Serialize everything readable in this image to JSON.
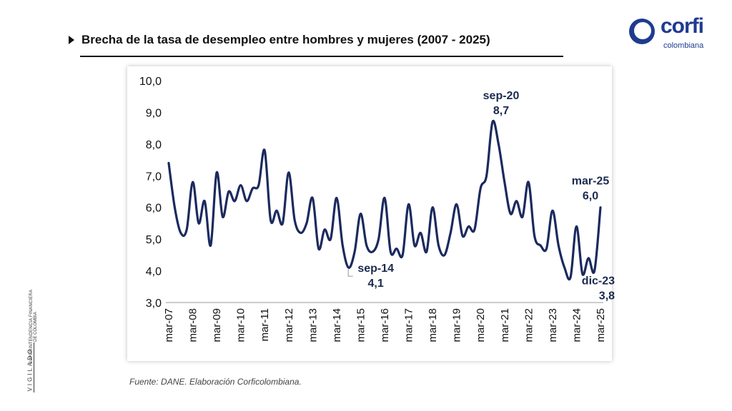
{
  "header": {
    "title": "Brecha de la tasa de desempleo entre hombres y mujeres (2007 - 2025)"
  },
  "logo": {
    "word": "corfi",
    "sub": "colombiana"
  },
  "seal": {
    "line1": "SUPERINTENDENCIA FINANCIERA",
    "line2": "DE COLOMBIA",
    "vigilado": "VIGILADO"
  },
  "source": "Fuente: DANE. Elaboración Corficolombiana.",
  "colors": {
    "line": "#1b2a5e",
    "text": "#1b2a4e",
    "axis": "#111111"
  },
  "chart_data": {
    "type": "line",
    "title": "Brecha de la tasa de desempleo entre hombres y mujeres (2007 - 2025)",
    "xlabel": "",
    "ylabel": "",
    "ylim": [
      3.0,
      10.0
    ],
    "yticks": [
      "10,0",
      "9,0",
      "8,0",
      "7,0",
      "6,0",
      "5,0",
      "4,0",
      "3,0"
    ],
    "xticks": [
      "mar-07",
      "mar-08",
      "mar-09",
      "mar-10",
      "mar-11",
      "mar-12",
      "mar-13",
      "mar-14",
      "mar-15",
      "mar-16",
      "mar-17",
      "mar-18",
      "mar-19",
      "mar-20",
      "mar-21",
      "mar-22",
      "mar-23",
      "mar-24",
      "mar-25"
    ],
    "grid": false,
    "series": [
      {
        "values": [
          7.4,
          6.0,
          5.2,
          5.3,
          6.8,
          5.5,
          6.2,
          4.8,
          7.1,
          5.7,
          6.5,
          6.2,
          6.7,
          6.2,
          6.6,
          6.7,
          7.8,
          5.6,
          5.9,
          5.5,
          7.1,
          5.6,
          5.2,
          5.5,
          6.3,
          4.7,
          5.3,
          5.0,
          6.3,
          4.8,
          4.1,
          4.6,
          5.8,
          4.8,
          4.6,
          5.0,
          6.3,
          4.6,
          4.7,
          4.5,
          6.1,
          4.8,
          5.2,
          4.6,
          6.0,
          4.8,
          4.5,
          5.2,
          6.1,
          5.1,
          5.4,
          5.3,
          6.6,
          7.0,
          8.7,
          8.0,
          6.8,
          5.8,
          6.2,
          5.7,
          6.8,
          5.1,
          4.8,
          4.7,
          5.9,
          4.8,
          4.1,
          3.8,
          5.4,
          3.9,
          4.4,
          4.0,
          6.0
        ]
      }
    ],
    "annotations": [
      {
        "label": "sep-14",
        "value": "4,1"
      },
      {
        "label": "sep-20",
        "value": "8,7"
      },
      {
        "label": "mar-25",
        "value": "6,0"
      },
      {
        "label": "dic-23",
        "value": "3,8"
      }
    ]
  }
}
